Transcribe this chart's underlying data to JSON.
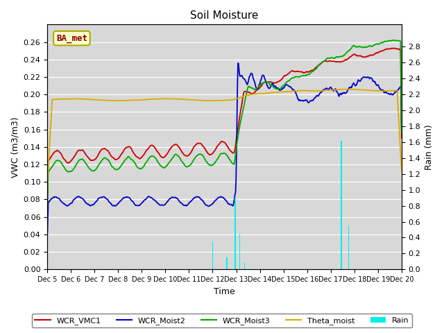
{
  "title": "Soil Moisture",
  "ylabel_left": "VWC (m3/m3)",
  "ylabel_right": "Rain (mm)",
  "xlabel": "Time",
  "ylim_left": [
    0.0,
    0.28
  ],
  "ylim_right": [
    0.0,
    3.08
  ],
  "yticks_left": [
    0.0,
    0.02,
    0.04,
    0.06,
    0.08,
    0.1,
    0.12,
    0.14,
    0.16,
    0.18,
    0.2,
    0.22,
    0.24,
    0.26
  ],
  "yticks_right": [
    0.0,
    0.2,
    0.4,
    0.6,
    0.8,
    1.0,
    1.2,
    1.4,
    1.6,
    1.8,
    2.0,
    2.2,
    2.4,
    2.6,
    2.8
  ],
  "colors": {
    "WCR_VMC1": "#cc0000",
    "WCR_Moist2": "#0000cc",
    "WCR_Moist3": "#00aa00",
    "Theta_moist": "#ddaa00",
    "Rain": "#00eeee"
  },
  "legend_label": "BA_met",
  "bg_color": "#d8d8d8",
  "grid_color": "#ffffff",
  "xtick_labels": [
    "Dec 5",
    "Dec 6",
    "Dec 7",
    "Dec 8",
    "Dec 9",
    "Dec 10",
    "Dec 11",
    "Dec 12",
    "Dec 13",
    "Dec 14",
    "Dec 15",
    "Dec 16",
    "Dec 17",
    "Dec 18",
    "Dec 19",
    "Dec 20"
  ]
}
